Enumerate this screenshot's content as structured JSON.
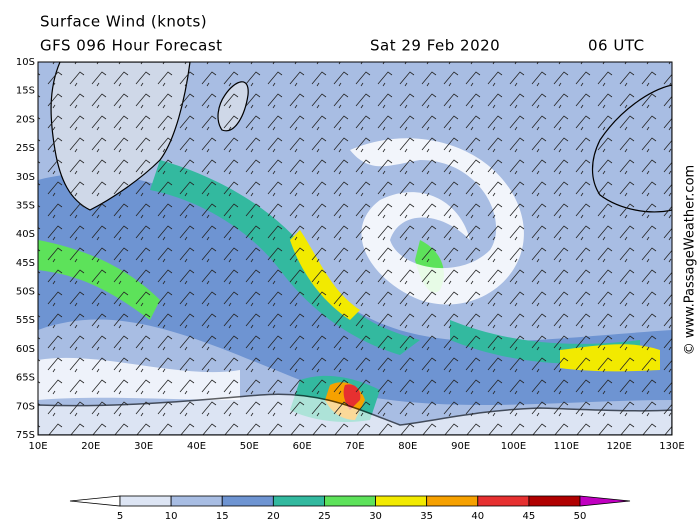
{
  "header": {
    "title": "Surface Wind (knots)",
    "subtitle": "GFS 096 Hour Forecast",
    "date": "Sat 29 Feb 2020",
    "time": "06 UTC"
  },
  "lat_labels": [
    "10S",
    "15S",
    "20S",
    "25S",
    "30S",
    "35S",
    "40S",
    "45S",
    "50S",
    "55S",
    "60S",
    "65S",
    "70S",
    "75S"
  ],
  "lon_labels": [
    "10E",
    "20E",
    "30E",
    "40E",
    "50E",
    "60E",
    "70E",
    "80E",
    "90E",
    "100E",
    "110E",
    "120E",
    "130E"
  ],
  "colorbar": {
    "ticks": [
      5,
      10,
      15,
      20,
      25,
      30,
      35,
      40,
      45,
      50
    ],
    "colors": [
      "#ffffff",
      "#dde5f4",
      "#a8bde3",
      "#6e94d2",
      "#33b99f",
      "#5de25a",
      "#f2ea00",
      "#f6a100",
      "#e63030",
      "#b00000",
      "#c000c0"
    ]
  },
  "credit": "© www.PassageWeather.com"
}
